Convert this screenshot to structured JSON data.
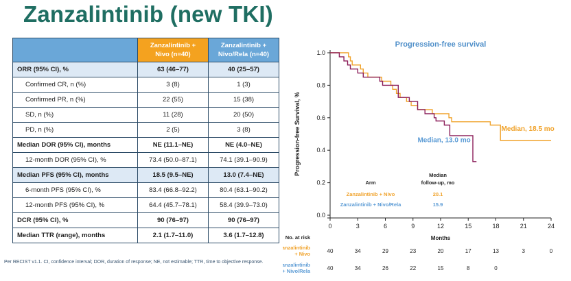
{
  "title": "Zanzalintinib (new TKI)",
  "table": {
    "headers": [
      "",
      "Zanzalintinib +\nNivo (n=40)",
      "Zanzalintinib +\nNivo/Rela (n=40)"
    ],
    "header1_line1": "Zanzalintinib +",
    "header1_line2": "Nivo (n=40)",
    "header2_line1": "Zanzalintinib +",
    "header2_line2": "Nivo/Rela (n=40)",
    "rows": [
      {
        "label": "ORR (95% CI), %",
        "c1": "63 (46–77)",
        "c2": "40 (25–57)",
        "bold": true,
        "shade": true,
        "sub": false
      },
      {
        "label": "Confirmed CR, n (%)",
        "c1": "3 (8)",
        "c2": "1 (3)",
        "bold": false,
        "shade": false,
        "sub": true
      },
      {
        "label": "Confirmed PR, n (%)",
        "c1": "22 (55)",
        "c2": "15 (38)",
        "bold": false,
        "shade": false,
        "sub": true
      },
      {
        "label": "SD, n (%)",
        "c1": "11 (28)",
        "c2": "20 (50)",
        "bold": false,
        "shade": false,
        "sub": true
      },
      {
        "label": "PD, n (%)",
        "c1": "2 (5)",
        "c2": "3 (8)",
        "bold": false,
        "shade": false,
        "sub": true
      },
      {
        "label": "Median DOR (95% CI), months",
        "c1": "NE (11.1–NE)",
        "c2": "NE (4.0–NE)",
        "bold": true,
        "shade": false,
        "sub": false
      },
      {
        "label": "12-month DOR (95% CI), %",
        "c1": "73.4 (50.0–87.1)",
        "c2": "74.1 (39.1–90.9)",
        "bold": false,
        "shade": false,
        "sub": true
      },
      {
        "label": "Median PFS (95% CI), months",
        "c1": "18.5 (9.5–NE)",
        "c2": "13.0 (7.4–NE)",
        "bold": true,
        "shade": true,
        "sub": false
      },
      {
        "label": "6-month PFS (95% CI), %",
        "c1": "83.4 (66.8–92.2)",
        "c2": "80.4 (63.1–90.2)",
        "bold": false,
        "shade": false,
        "sub": true
      },
      {
        "label": "12-month PFS (95% CI), %",
        "c1": "64.4 (45.7–78.1)",
        "c2": "58.4 (39.9–73.0)",
        "bold": false,
        "shade": false,
        "sub": true
      },
      {
        "label": "DCR (95% CI), %",
        "c1": "90 (76–97)",
        "c2": "90 (76–97)",
        "bold": true,
        "shade": false,
        "sub": false
      },
      {
        "label": "Median TTR (range), months",
        "c1": "2.1 (1.7–11.0)",
        "c2": "3.6 (1.7–12.8)",
        "bold": true,
        "shade": false,
        "sub": false
      }
    ]
  },
  "footnote": "Per RECIST v1.1. CI, confidence interval; DOR, duration of response; NE, not estimable; TTR, time to objective response.",
  "chart_data": {
    "type": "line",
    "title": "Progression-free survival",
    "xlabel": "Months",
    "ylabel": "Progression-free Survival, %",
    "xlim": [
      0,
      24
    ],
    "ylim": [
      0,
      1.0
    ],
    "xticks": [
      0,
      3,
      6,
      9,
      12,
      15,
      18,
      21,
      24
    ],
    "yticks": [
      "0.0",
      "0.2",
      "0.4",
      "0.6",
      "0.8",
      "1.0"
    ],
    "grid": false,
    "colors": {
      "nivo": "#f0a22a",
      "rela": "#8b1e5a",
      "title": "#4f8fc9",
      "median_rela_text": "#5b9bd5"
    },
    "series": [
      {
        "name": "Zanzalintinib + Nivo",
        "x": [
          0,
          1.5,
          2.0,
          2.2,
          2.4,
          3.3,
          3.6,
          4.1,
          5.0,
          5.6,
          6.6,
          6.8,
          7.2,
          7.6,
          8.3,
          8.8,
          9.5,
          11.1,
          12.9,
          13.2,
          17.4,
          18.5,
          24
        ],
        "y": [
          1.0,
          1.0,
          0.975,
          0.95,
          0.925,
          0.9,
          0.875,
          0.85,
          0.85,
          0.825,
          0.8,
          0.775,
          0.75,
          0.725,
          0.7,
          0.675,
          0.65,
          0.625,
          0.6,
          0.575,
          0.555,
          0.46,
          0.46
        ]
      },
      {
        "name": "Zanzalintinib + Nivo/Rela",
        "x": [
          0,
          1.0,
          1.5,
          1.9,
          2.2,
          3.0,
          3.6,
          5.4,
          5.7,
          7.4,
          8.6,
          9.5,
          10.3,
          11.3,
          11.5,
          12.4,
          13.0,
          15.5,
          15.9
        ],
        "y": [
          1.0,
          0.975,
          0.95,
          0.925,
          0.9,
          0.875,
          0.85,
          0.825,
          0.8,
          0.725,
          0.7,
          0.65,
          0.625,
          0.6,
          0.58,
          0.555,
          0.49,
          0.33,
          0.33
        ]
      }
    ],
    "annotations": {
      "median_nivo": "Median, 18.5 mo",
      "median_rela": "Median, 13.0 mo",
      "arm_header": "Arm",
      "median_fu_header_line1": "Median",
      "median_fu_header_line2": "follow-up, mo",
      "arm1": "Zanzalintinib + Nivo",
      "arm1_fu": "20.1",
      "arm2": "Zanzalintinib + Nivo/Rela",
      "arm2_fu": "15.9"
    },
    "at_risk": {
      "label": "No. at risk",
      "row1_label_line1": "Zanzalintinib",
      "row1_label_line2": "+ Nivo",
      "row1": [
        "40",
        "34",
        "29",
        "23",
        "20",
        "17",
        "13",
        "3",
        "0"
      ],
      "row2_label_line1": "Zanzalintinib",
      "row2_label_line2": "+ Nivo/Rela",
      "row2": [
        "40",
        "34",
        "26",
        "22",
        "15",
        "8",
        "0"
      ]
    }
  }
}
